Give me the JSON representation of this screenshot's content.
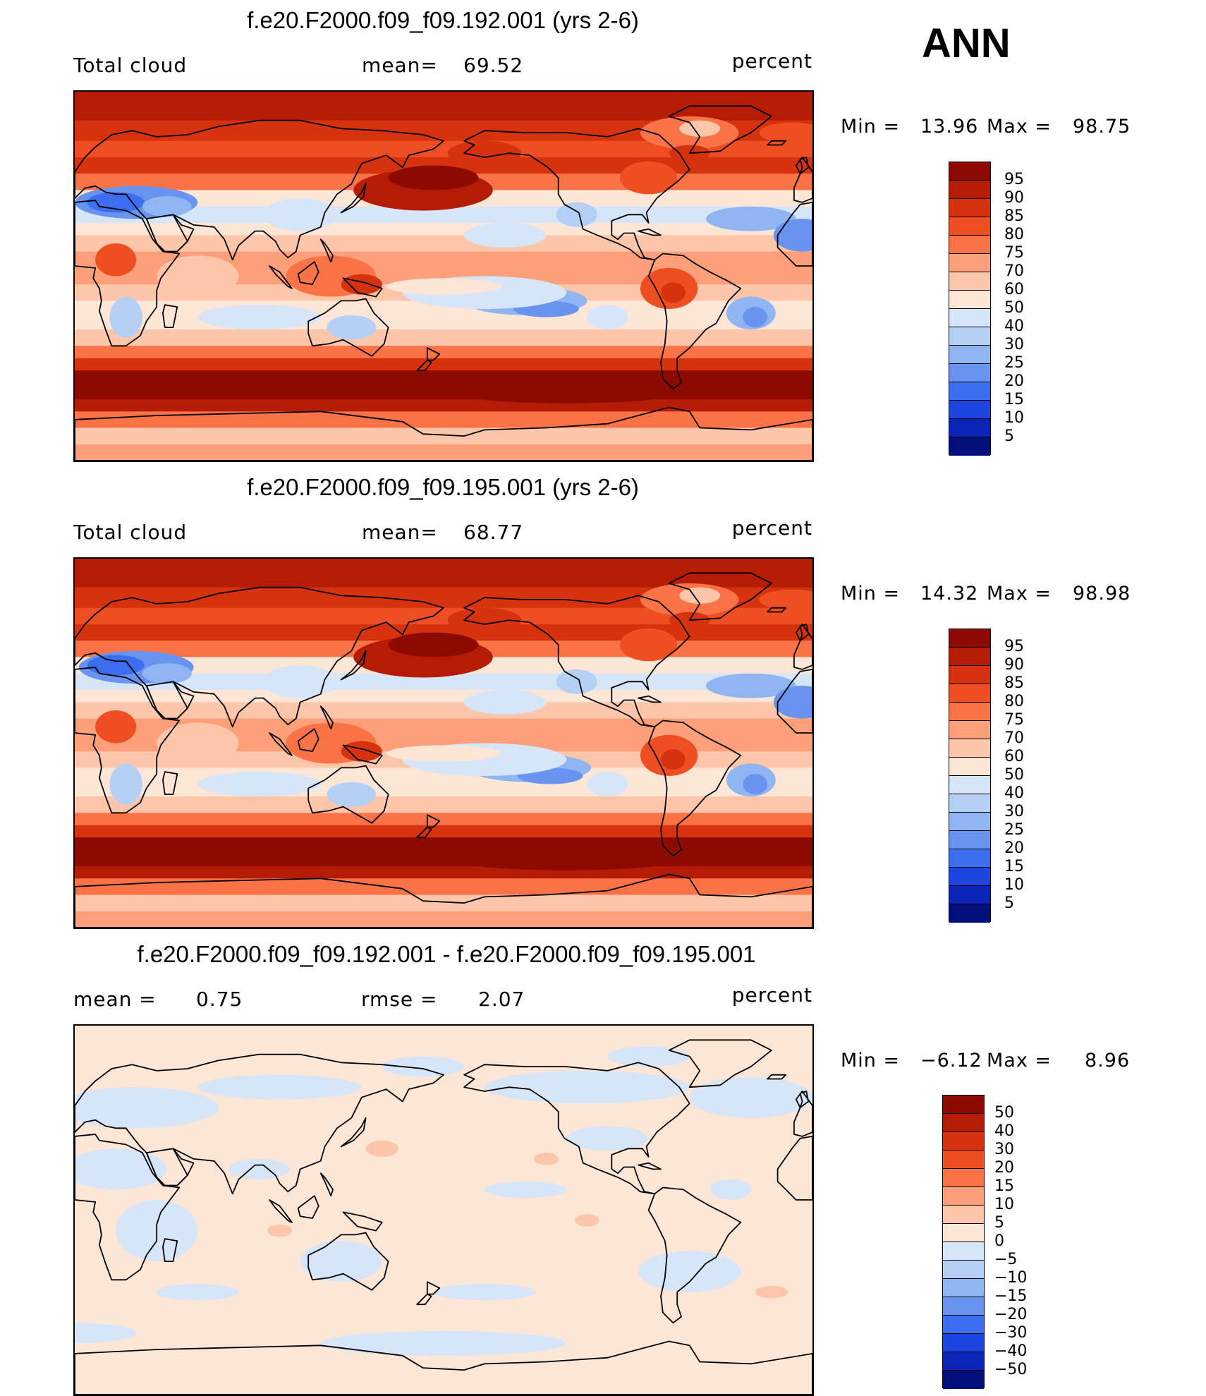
{
  "season": "ANN",
  "panels": [
    {
      "title": "f.e20.F2000.f09_f09.192.001 (yrs 2-6)",
      "left_label": "Total cloud",
      "stat1_label": "mean=",
      "stat1_value": "69.52",
      "stat2_label": "",
      "stat2_value": "",
      "units": "percent",
      "min_label": "Min =",
      "min_value": "13.96",
      "max_label": "Max =",
      "max_value": "98.75",
      "colorbar_labels": [
        "95",
        "90",
        "85",
        "80",
        "75",
        "70",
        "60",
        "50",
        "40",
        "30",
        "25",
        "20",
        "15",
        "10",
        "5"
      ],
      "colorbar_colors": [
        "#8c0a00",
        "#b51b05",
        "#d6320e",
        "#ee4e22",
        "#fa7346",
        "#fda07a",
        "#fdc6aa",
        "#fde6d6",
        "#d6e6f8",
        "#b5d0f5",
        "#8fb5f2",
        "#6894f0",
        "#3b6ef0",
        "#1d46e0",
        "#0a24b8",
        "#030f7a"
      ],
      "field": "total_cloud"
    },
    {
      "title": "f.e20.F2000.f09_f09.195.001 (yrs 2-6)",
      "left_label": "Total cloud",
      "stat1_label": "mean=",
      "stat1_value": "68.77",
      "stat2_label": "",
      "stat2_value": "",
      "units": "percent",
      "min_label": "Min =",
      "min_value": "14.32",
      "max_label": "Max =",
      "max_value": "98.98",
      "colorbar_labels": [
        "95",
        "90",
        "85",
        "80",
        "75",
        "70",
        "60",
        "50",
        "40",
        "30",
        "25",
        "20",
        "15",
        "10",
        "5"
      ],
      "colorbar_colors": [
        "#8c0a00",
        "#b51b05",
        "#d6320e",
        "#ee4e22",
        "#fa7346",
        "#fda07a",
        "#fdc6aa",
        "#fde6d6",
        "#d6e6f8",
        "#b5d0f5",
        "#8fb5f2",
        "#6894f0",
        "#3b6ef0",
        "#1d46e0",
        "#0a24b8",
        "#030f7a"
      ],
      "field": "total_cloud"
    },
    {
      "title": "f.e20.F2000.f09_f09.192.001 - f.e20.F2000.f09_f09.195.001",
      "left_label": "",
      "stat1_label": "mean =",
      "stat1_value": "0.75",
      "stat2_label": "rmse =",
      "stat2_value": "2.07",
      "units": "percent",
      "min_label": "Min =",
      "min_value": "−6.12",
      "max_label": "Max =",
      "max_value": "8.96",
      "colorbar_labels": [
        "50",
        "40",
        "30",
        "20",
        "15",
        "10",
        "5",
        "0",
        "−5",
        "−10",
        "−15",
        "−20",
        "−30",
        "−40",
        "−50"
      ],
      "colorbar_colors": [
        "#8c0a00",
        "#b51b05",
        "#d6320e",
        "#ee4e22",
        "#fa7346",
        "#fda07a",
        "#fdc6aa",
        "#fde6d6",
        "#d6e6f8",
        "#b5d0f5",
        "#8fb5f2",
        "#6894f0",
        "#3b6ef0",
        "#1d46e0",
        "#0a24b8",
        "#030f7a"
      ],
      "field": "difference"
    }
  ]
}
